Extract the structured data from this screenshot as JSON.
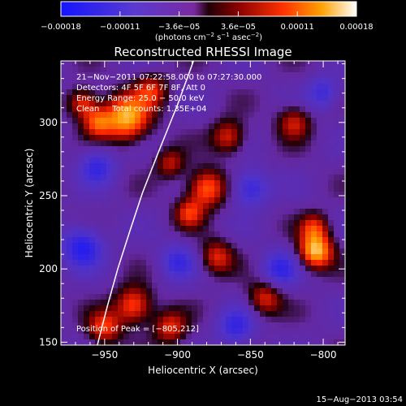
{
  "chart_data": {
    "type": "heatmap",
    "title": "Reconstructed RHESSI Image",
    "xlabel": "Heliocentric X (arcsec)",
    "ylabel": "Heliocentric Y (arcsec)",
    "xlim": [
      -980,
      -785
    ],
    "ylim": [
      148,
      342
    ],
    "x_ticks": [
      -950,
      -900,
      -850,
      -800
    ],
    "y_ticks": [
      150,
      200,
      250,
      300
    ],
    "x_tick_labels": [
      "−950",
      "−900",
      "−850",
      "−800"
    ],
    "y_tick_labels": [
      "150",
      "200",
      "250",
      "300"
    ],
    "colorbar": {
      "range": [
        -0.00018,
        0.00018
      ],
      "tick_labels": [
        "−0.00018",
        "−0.00011",
        "−3.6e−05",
        "3.6e−05",
        "0.00011",
        "0.00018"
      ],
      "unit_parts": [
        "(photons cm",
        "−2",
        " s",
        "−1",
        " asec",
        "−2",
        ")"
      ]
    },
    "annotations": [
      "21−Nov−2011 07:22:58.000 to 07:27:30.000",
      "Detectors: 4F 5F 6F 7F 8F, Att 0",
      "Energy Range: 25.0 − 50.0 keV",
      "Clean     Total counts: 1.35E+04"
    ],
    "peak_label": "Position of Peak = [−805,212]",
    "peak_position": [
      -805,
      212
    ],
    "limb_curve": [
      [
        -955,
        148
      ],
      [
        -948,
        175
      ],
      [
        -941,
        200
      ],
      [
        -933,
        225
      ],
      [
        -924,
        252
      ],
      [
        -913,
        280
      ],
      [
        -900,
        312
      ],
      [
        -889,
        342
      ]
    ],
    "sources": [
      {
        "x": -805,
        "y": 212,
        "amp": 1.0,
        "s": 8
      },
      {
        "x": -806,
        "y": 228,
        "amp": 0.55,
        "s": 7
      },
      {
        "x": -935,
        "y": 303,
        "amp": 0.95,
        "s": 11
      },
      {
        "x": -955,
        "y": 300,
        "amp": 0.6,
        "s": 7
      },
      {
        "x": -965,
        "y": 313,
        "amp": 0.6,
        "s": 7
      },
      {
        "x": -918,
        "y": 322,
        "amp": 0.5,
        "s": 8
      },
      {
        "x": -930,
        "y": 175,
        "amp": 0.7,
        "s": 9
      },
      {
        "x": -950,
        "y": 160,
        "amp": 0.6,
        "s": 8
      },
      {
        "x": -905,
        "y": 160,
        "amp": 0.55,
        "s": 8
      },
      {
        "x": -880,
        "y": 255,
        "amp": 0.75,
        "s": 9
      },
      {
        "x": -892,
        "y": 238,
        "amp": 0.55,
        "s": 7
      },
      {
        "x": -865,
        "y": 290,
        "amp": 0.55,
        "s": 8
      },
      {
        "x": -873,
        "y": 208,
        "amp": 0.55,
        "s": 8
      },
      {
        "x": -840,
        "y": 180,
        "amp": 0.55,
        "s": 8
      },
      {
        "x": -820,
        "y": 300,
        "amp": 0.5,
        "s": 8
      },
      {
        "x": -905,
        "y": 272,
        "amp": 0.45,
        "s": 7
      },
      {
        "x": -965,
        "y": 215,
        "amp": -0.65,
        "s": 10
      },
      {
        "x": -955,
        "y": 270,
        "amp": -0.5,
        "s": 9
      },
      {
        "x": -850,
        "y": 255,
        "amp": -0.55,
        "s": 9
      },
      {
        "x": -830,
        "y": 200,
        "amp": -0.5,
        "s": 9
      },
      {
        "x": -860,
        "y": 160,
        "amp": -0.5,
        "s": 9
      },
      {
        "x": -900,
        "y": 205,
        "amp": -0.45,
        "s": 9
      },
      {
        "x": -800,
        "y": 320,
        "amp": -0.45,
        "s": 8
      }
    ]
  },
  "footer": {
    "date_label": "15−Aug−2013 03:54"
  },
  "colors": {
    "background": "#000000",
    "text": "#ffffff",
    "limb": "#ffffff"
  }
}
